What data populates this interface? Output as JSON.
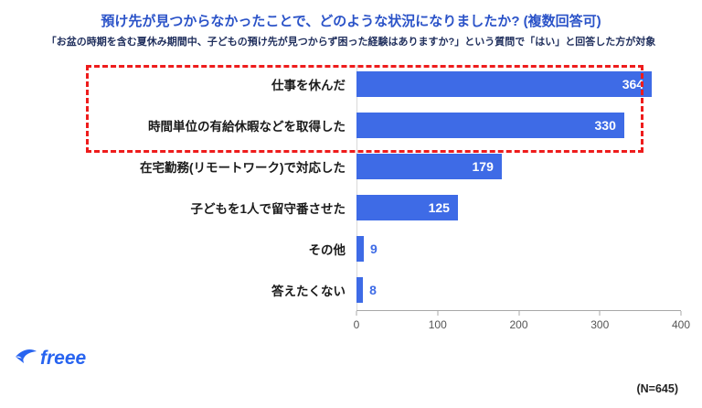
{
  "header": {
    "title": "預け先が見つからなかったことで、どのような状況になりましたか? (複数回答可)",
    "subtitle": "「お盆の時期を含む夏休み期間中、子どもの預け先が見つからず困った経験はありますか?」という質問で「はい」と回答した方が対象"
  },
  "chart_data": {
    "type": "bar",
    "orientation": "horizontal",
    "categories": [
      "仕事を休んだ",
      "時間単位の有給休暇などを取得した",
      "在宅勤務(リモートワーク)で対応した",
      "子どもを1人で留守番させた",
      "その他",
      "答えたくない"
    ],
    "values": [
      364,
      330,
      179,
      125,
      9,
      8
    ],
    "x_ticks": [
      "0",
      "100",
      "200",
      "300",
      "400"
    ],
    "xlim": [
      0,
      400
    ],
    "bar_color": "#3e6be6",
    "grid": false,
    "legend": "none",
    "highlight": {
      "style": "red-dashed-box",
      "rows": [
        0,
        1
      ],
      "color": "#ee1c1c"
    }
  },
  "footer": {
    "logo_text": "freee",
    "sample_size": "(N=645)"
  }
}
